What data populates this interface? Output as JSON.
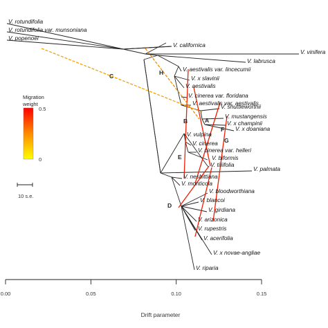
{
  "chart_data": {
    "type": "tree",
    "xlabel": "Drift parameter",
    "xlim": [
      0.0,
      0.15
    ],
    "xticks": [
      "0.00",
      "0.05",
      "0.10",
      "0.15"
    ],
    "tick_values": [
      0.0,
      0.05,
      0.1,
      0.15
    ],
    "legend": {
      "title_line1": "Migration",
      "title_line2": "weight",
      "max_label": "0.5",
      "min_label": "0",
      "colors": [
        "#ff0000",
        "#ff8c00",
        "#ffff00"
      ]
    },
    "scale_bar_label": "10 s.e.",
    "taxa": [
      {
        "name": "V. rotundifolia",
        "x": 0.0
      },
      {
        "name": "V. rotundifolia var. munsoniana",
        "x": 0.0
      },
      {
        "name": "V. popenoei",
        "x": 0.0
      },
      {
        "name": "V. californica",
        "x": 0.098
      },
      {
        "name": "V. vinifera",
        "x": 0.173
      },
      {
        "name": "V. labrusca",
        "x": 0.142
      },
      {
        "name": "V. aestivalis var. lincecumii",
        "x": 0.104
      },
      {
        "name": "V. x slavinii",
        "x": 0.108
      },
      {
        "name": "V. aestivalis",
        "x": 0.106
      },
      {
        "name": "V. cinerea var. floridana",
        "x": 0.106
      },
      {
        "name": "V. aestivalis var. aestivalis",
        "x": 0.108
      },
      {
        "name": "V. shuttleworthii",
        "x": 0.124
      },
      {
        "name": "V. mustangensis",
        "x": 0.127
      },
      {
        "name": "V. x champinii",
        "x": 0.129
      },
      {
        "name": "V. x doaniana",
        "x": 0.133
      },
      {
        "name": "V. vulpina",
        "x": 0.105
      },
      {
        "name": "V. cinerea",
        "x": 0.107
      },
      {
        "name": "V. cinerea var. helleri",
        "x": 0.109
      },
      {
        "name": "V. biformis",
        "x": 0.112
      },
      {
        "name": "V. tiliifolia",
        "x": 0.109
      },
      {
        "name": "V. palmata",
        "x": 0.138
      },
      {
        "name": "V. nesbittiana",
        "x": 0.105
      },
      {
        "name": "V. monticola",
        "x": 0.1
      },
      {
        "name": "V. bloodworthiana",
        "x": 0.116
      },
      {
        "name": "V. blancoi",
        "x": 0.108
      },
      {
        "name": "V. girdiana",
        "x": 0.112
      },
      {
        "name": "V. arizonica",
        "x": 0.104
      },
      {
        "name": "V. rupestris",
        "x": 0.108
      },
      {
        "name": "V. acerifolia",
        "x": 0.113
      },
      {
        "name": "V. x novae-angliae",
        "x": 0.12
      },
      {
        "name": "V. riparia",
        "x": 0.105
      }
    ],
    "migration_edges": [
      {
        "label": "A",
        "weight": 0.45
      },
      {
        "label": "B",
        "weight": 0.45
      },
      {
        "label": "C",
        "weight": 0.2
      },
      {
        "label": "D",
        "weight": 0.45
      },
      {
        "label": "E",
        "weight": 0.45
      },
      {
        "label": "F",
        "weight": 0.45
      },
      {
        "label": "G",
        "weight": 0.45
      },
      {
        "label": "H",
        "weight": 0.25
      }
    ]
  }
}
